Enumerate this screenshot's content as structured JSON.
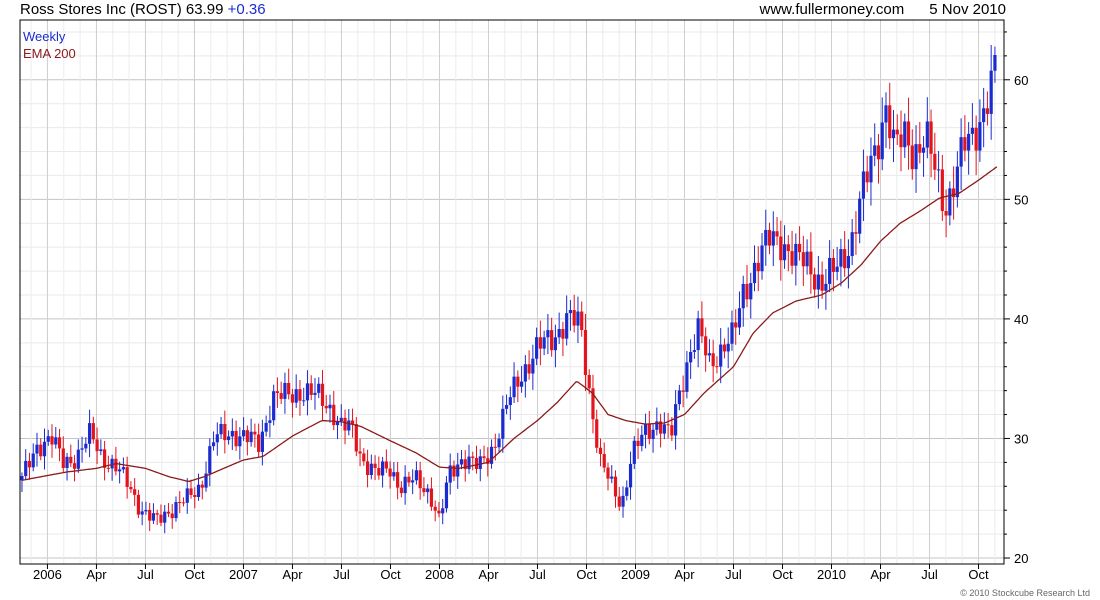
{
  "header": {
    "ticker": "Ross Stores Inc (ROST)",
    "price": "63.99",
    "change": "+0.36",
    "site": "www.fullermoney.com",
    "date": "5 Nov 2010"
  },
  "copyright": "© 2010 Stockcube Research Ltd",
  "colors": {
    "up": "#1a2ccf",
    "down": "#e3141b",
    "ema": "#8b1a1a",
    "grid": "#d8d8d8"
  },
  "chart_data": {
    "type": "candlestick",
    "title": "Ross Stores Inc (ROST)",
    "interval": "Weekly",
    "legend": [
      "Weekly",
      "EMA 200"
    ],
    "legend_position": "top-left",
    "grid": true,
    "ylim": [
      19.5,
      65
    ],
    "yticks": [
      20,
      30,
      40,
      50,
      60
    ],
    "xlim": [
      2005.86,
      2010.88
    ],
    "xticks": [
      {
        "t": 2006.0,
        "label": "2006"
      },
      {
        "t": 2006.25,
        "label": "Apr"
      },
      {
        "t": 2006.5,
        "label": "Jul"
      },
      {
        "t": 2006.75,
        "label": "Oct"
      },
      {
        "t": 2007.0,
        "label": "2007"
      },
      {
        "t": 2007.25,
        "label": "Apr"
      },
      {
        "t": 2007.5,
        "label": "Jul"
      },
      {
        "t": 2007.75,
        "label": "Oct"
      },
      {
        "t": 2008.0,
        "label": "2008"
      },
      {
        "t": 2008.25,
        "label": "Apr"
      },
      {
        "t": 2008.5,
        "label": "Jul"
      },
      {
        "t": 2008.75,
        "label": "Oct"
      },
      {
        "t": 2009.0,
        "label": "2009"
      },
      {
        "t": 2009.25,
        "label": "Apr"
      },
      {
        "t": 2009.5,
        "label": "Jul"
      },
      {
        "t": 2009.75,
        "label": "Oct"
      },
      {
        "t": 2010.0,
        "label": "2010"
      },
      {
        "t": 2010.25,
        "label": "Apr"
      },
      {
        "t": 2010.5,
        "label": "Jul"
      },
      {
        "t": 2010.75,
        "label": "Oct"
      }
    ],
    "price_anchors": [
      [
        2005.87,
        26.5
      ],
      [
        2005.95,
        29.5
      ],
      [
        2006.02,
        30.0
      ],
      [
        2006.08,
        28.0
      ],
      [
        2006.15,
        28.5
      ],
      [
        2006.22,
        30.3
      ],
      [
        2006.28,
        28.5
      ],
      [
        2006.35,
        27.5
      ],
      [
        2006.42,
        26.0
      ],
      [
        2006.48,
        24.0
      ],
      [
        2006.55,
        23.0
      ],
      [
        2006.62,
        24.0
      ],
      [
        2006.72,
        25.0
      ],
      [
        2006.78,
        26.0
      ],
      [
        2006.85,
        30.0
      ],
      [
        2006.95,
        30.5
      ],
      [
        2007.02,
        30.0
      ],
      [
        2007.08,
        29.5
      ],
      [
        2007.15,
        33.5
      ],
      [
        2007.22,
        33.5
      ],
      [
        2007.3,
        34.0
      ],
      [
        2007.38,
        33.5
      ],
      [
        2007.45,
        32.5
      ],
      [
        2007.5,
        31.0
      ],
      [
        2007.55,
        30.8
      ],
      [
        2007.6,
        28.5
      ],
      [
        2007.68,
        27.0
      ],
      [
        2007.75,
        27.5
      ],
      [
        2007.8,
        26.0
      ],
      [
        2007.88,
        26.5
      ],
      [
        2007.95,
        25.5
      ],
      [
        2008.0,
        23.0
      ],
      [
        2008.05,
        27.0
      ],
      [
        2008.12,
        28.5
      ],
      [
        2008.2,
        27.5
      ],
      [
        2008.28,
        29.5
      ],
      [
        2008.35,
        33.0
      ],
      [
        2008.42,
        35.5
      ],
      [
        2008.5,
        37.5
      ],
      [
        2008.58,
        38.5
      ],
      [
        2008.65,
        40.0
      ],
      [
        2008.72,
        39.5
      ],
      [
        2008.76,
        34.5
      ],
      [
        2008.82,
        28.0
      ],
      [
        2008.88,
        26.0
      ],
      [
        2008.93,
        24.5
      ],
      [
        2008.98,
        28.5
      ],
      [
        2009.05,
        30.5
      ],
      [
        2009.12,
        31.5
      ],
      [
        2009.18,
        30.0
      ],
      [
        2009.22,
        33.5
      ],
      [
        2009.28,
        37.5
      ],
      [
        2009.32,
        39.0
      ],
      [
        2009.38,
        36.0
      ],
      [
        2009.45,
        38.0
      ],
      [
        2009.5,
        38.5
      ],
      [
        2009.55,
        42.0
      ],
      [
        2009.62,
        45.0
      ],
      [
        2009.68,
        46.5
      ],
      [
        2009.75,
        46.5
      ],
      [
        2009.82,
        45.0
      ],
      [
        2009.88,
        44.5
      ],
      [
        2009.95,
        43.0
      ],
      [
        2010.02,
        44.0
      ],
      [
        2010.1,
        46.5
      ],
      [
        2010.15,
        50.0
      ],
      [
        2010.22,
        54.0
      ],
      [
        2010.28,
        58.0
      ],
      [
        2010.32,
        54.0
      ],
      [
        2010.38,
        55.5
      ],
      [
        2010.42,
        54.0
      ],
      [
        2010.48,
        55.0
      ],
      [
        2010.52,
        53.0
      ],
      [
        2010.58,
        49.5
      ],
      [
        2010.62,
        51.0
      ],
      [
        2010.68,
        54.5
      ],
      [
        2010.72,
        55.5
      ],
      [
        2010.78,
        57.5
      ],
      [
        2010.83,
        60.0
      ],
      [
        2010.85,
        63.99
      ]
    ],
    "ema200_anchors": [
      [
        2005.87,
        26.5
      ],
      [
        2006.0,
        26.9
      ],
      [
        2006.1,
        27.2
      ],
      [
        2006.25,
        27.5
      ],
      [
        2006.35,
        27.9
      ],
      [
        2006.5,
        27.5
      ],
      [
        2006.62,
        26.8
      ],
      [
        2006.72,
        26.4
      ],
      [
        2006.8,
        26.8
      ],
      [
        2007.0,
        28.2
      ],
      [
        2007.1,
        28.5
      ],
      [
        2007.25,
        30.2
      ],
      [
        2007.4,
        31.5
      ],
      [
        2007.5,
        31.4
      ],
      [
        2007.6,
        31.0
      ],
      [
        2007.75,
        29.8
      ],
      [
        2007.88,
        28.8
      ],
      [
        2008.0,
        27.6
      ],
      [
        2008.1,
        27.5
      ],
      [
        2008.25,
        28.0
      ],
      [
        2008.38,
        30.0
      ],
      [
        2008.5,
        31.5
      ],
      [
        2008.6,
        33.0
      ],
      [
        2008.7,
        34.8
      ],
      [
        2008.78,
        33.8
      ],
      [
        2008.86,
        32.0
      ],
      [
        2008.95,
        31.5
      ],
      [
        2009.05,
        31.2
      ],
      [
        2009.15,
        31.3
      ],
      [
        2009.25,
        32.0
      ],
      [
        2009.35,
        33.8
      ],
      [
        2009.5,
        36.0
      ],
      [
        2009.6,
        38.8
      ],
      [
        2009.7,
        40.5
      ],
      [
        2009.82,
        41.5
      ],
      [
        2009.95,
        42.0
      ],
      [
        2010.05,
        43.0
      ],
      [
        2010.15,
        44.5
      ],
      [
        2010.25,
        46.5
      ],
      [
        2010.35,
        48.0
      ],
      [
        2010.45,
        49.0
      ],
      [
        2010.55,
        50.1
      ],
      [
        2010.65,
        50.5
      ],
      [
        2010.75,
        51.6
      ],
      [
        2010.85,
        52.8
      ]
    ]
  }
}
